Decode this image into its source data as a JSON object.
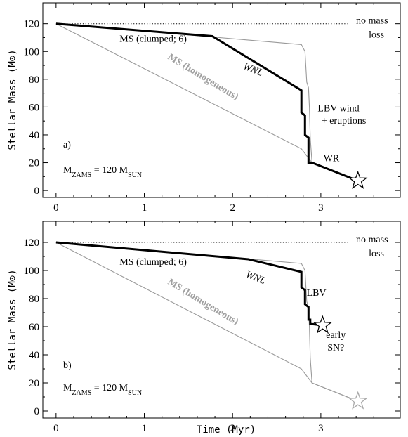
{
  "chart_data": [
    {
      "type": "line",
      "panel_label": "a)",
      "xlim": [
        -0.15,
        3.9
      ],
      "ylim": [
        -5,
        135
      ],
      "x_ticks": [
        0,
        1,
        2,
        3
      ],
      "y_ticks": [
        0,
        20,
        40,
        60,
        80,
        100,
        120
      ],
      "ylabel": "Stellar Mass (M⊙)",
      "xlabel": "",
      "zams_label": "M_ZAMS = 120 M_SUN",
      "series": [
        {
          "style": "dotted",
          "x": [
            0,
            3.3
          ],
          "y": [
            120,
            120
          ]
        },
        {
          "style": "thin-gray",
          "x": [
            0,
            2.78,
            2.82,
            2.84,
            2.86,
            2.87,
            2.88,
            2.9,
            3.42
          ],
          "y": [
            120,
            105,
            100,
            78,
            74,
            60,
            38,
            20,
            7
          ]
        },
        {
          "style": "thin-gray",
          "x": [
            0,
            2.78,
            2.9,
            3.42
          ],
          "y": [
            120,
            30,
            20,
            7
          ]
        },
        {
          "style": "thick",
          "x": [
            0,
            1.77,
            2.78,
            2.78,
            2.82,
            2.82,
            2.86,
            2.86,
            2.9,
            2.9,
            3.42
          ],
          "y": [
            120,
            111,
            72,
            56,
            54,
            40,
            38,
            20,
            20,
            20,
            7
          ]
        }
      ],
      "end_marker": {
        "x": 3.42,
        "y": 7,
        "color": "#000000"
      },
      "annotations": [
        {
          "text": "no mass",
          "x": 3.58,
          "y": 120,
          "style": "plain"
        },
        {
          "text": "loss",
          "x": 3.63,
          "y": 110,
          "style": "plain"
        },
        {
          "text": "MS (clumped; 6)",
          "x": 1.1,
          "y": 107,
          "style": "plain"
        },
        {
          "text": "WNL",
          "x": 2.22,
          "y": 85,
          "style": "italic"
        },
        {
          "text": "MS (homogeneous)",
          "x": 1.65,
          "y": 80,
          "style": "gray-bold"
        },
        {
          "text": "LBV wind",
          "x": 3.2,
          "y": 57,
          "style": "plain"
        },
        {
          "text": "+ eruptions",
          "x": 3.26,
          "y": 48,
          "style": "plain"
        },
        {
          "text": "WR",
          "x": 3.12,
          "y": 21,
          "style": "plain"
        }
      ]
    },
    {
      "type": "line",
      "panel_label": "b)",
      "xlim": [
        -0.15,
        3.9
      ],
      "ylim": [
        -5,
        135
      ],
      "x_ticks": [
        0,
        1,
        2,
        3
      ],
      "y_ticks": [
        0,
        20,
        40,
        60,
        80,
        100,
        120
      ],
      "ylabel": "Stellar Mass (M⊙)",
      "xlabel": "Time (Myr)",
      "zams_label": "M_ZAMS = 120 M_SUN",
      "series": [
        {
          "style": "dotted",
          "x": [
            0,
            3.3
          ],
          "y": [
            120,
            120
          ]
        },
        {
          "style": "thin-gray",
          "x": [
            0,
            2.78,
            2.82,
            2.84,
            2.86,
            2.87,
            2.88,
            2.9,
            3.42
          ],
          "y": [
            120,
            105,
            100,
            78,
            74,
            60,
            38,
            20,
            7
          ]
        },
        {
          "style": "thin-gray",
          "x": [
            0,
            2.78,
            2.9,
            3.42
          ],
          "y": [
            120,
            30,
            20,
            7
          ]
        },
        {
          "style": "thick",
          "x": [
            0,
            2.18,
            2.78,
            2.78,
            2.82,
            2.82,
            2.86,
            2.86,
            2.88,
            2.88,
            3.02
          ],
          "y": [
            120,
            108,
            99,
            88,
            86,
            76,
            74,
            65,
            65,
            62,
            61
          ]
        }
      ],
      "end_marker": {
        "x": 3.02,
        "y": 61,
        "color": "#000000"
      },
      "end_marker2": {
        "x": 3.42,
        "y": 7,
        "color": "#a8a8a8"
      },
      "annotations": [
        {
          "text": "no mass",
          "x": 3.58,
          "y": 120,
          "style": "plain"
        },
        {
          "text": "loss",
          "x": 3.63,
          "y": 110,
          "style": "plain"
        },
        {
          "text": "MS (clumped; 6)",
          "x": 1.1,
          "y": 104,
          "style": "plain"
        },
        {
          "text": "WNL",
          "x": 2.25,
          "y": 93,
          "style": "italic"
        },
        {
          "text": "MS (homogeneous)",
          "x": 1.65,
          "y": 76,
          "style": "gray-bold"
        },
        {
          "text": "LBV",
          "x": 2.95,
          "y": 82,
          "style": "plain"
        },
        {
          "text": "early",
          "x": 3.17,
          "y": 52,
          "style": "plain"
        },
        {
          "text": "SN?",
          "x": 3.17,
          "y": 43,
          "style": "plain"
        }
      ]
    }
  ]
}
